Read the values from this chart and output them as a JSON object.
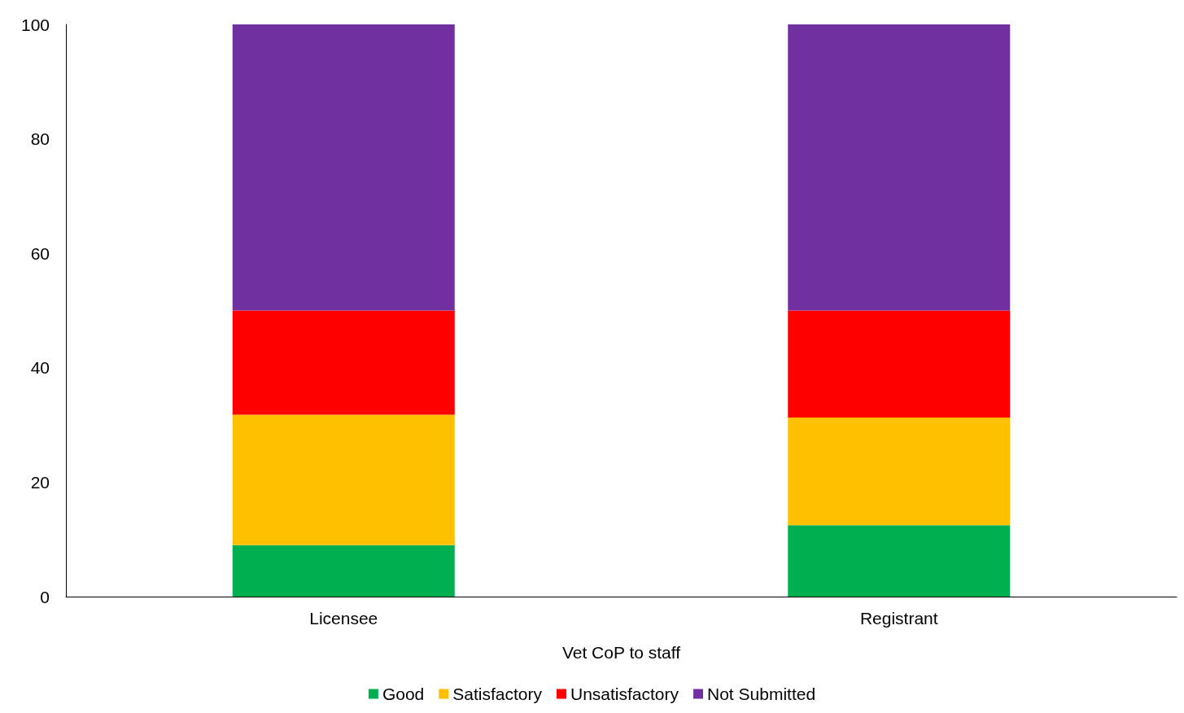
{
  "chart_data": {
    "type": "bar",
    "xlabel": "Vet CoP to staff",
    "categories": [
      "Licensee",
      "Registrant"
    ],
    "stacked": true,
    "series": [
      {
        "name": "Good",
        "color": "#00b050",
        "values": [
          9,
          12.5
        ]
      },
      {
        "name": "Satisfactory",
        "color": "#ffc000",
        "values": [
          22.8,
          18.8
        ]
      },
      {
        "name": "Unsatisfactory",
        "color": "#ff0000",
        "values": [
          18.2,
          18.7
        ]
      },
      {
        "name": "Not Submitted",
        "color": "#7030a0",
        "values": [
          50,
          50
        ]
      }
    ],
    "ylim": [
      0,
      100
    ],
    "yticks": [
      0,
      20,
      40,
      60,
      80,
      100
    ],
    "grid": false,
    "legend": "bottom"
  }
}
